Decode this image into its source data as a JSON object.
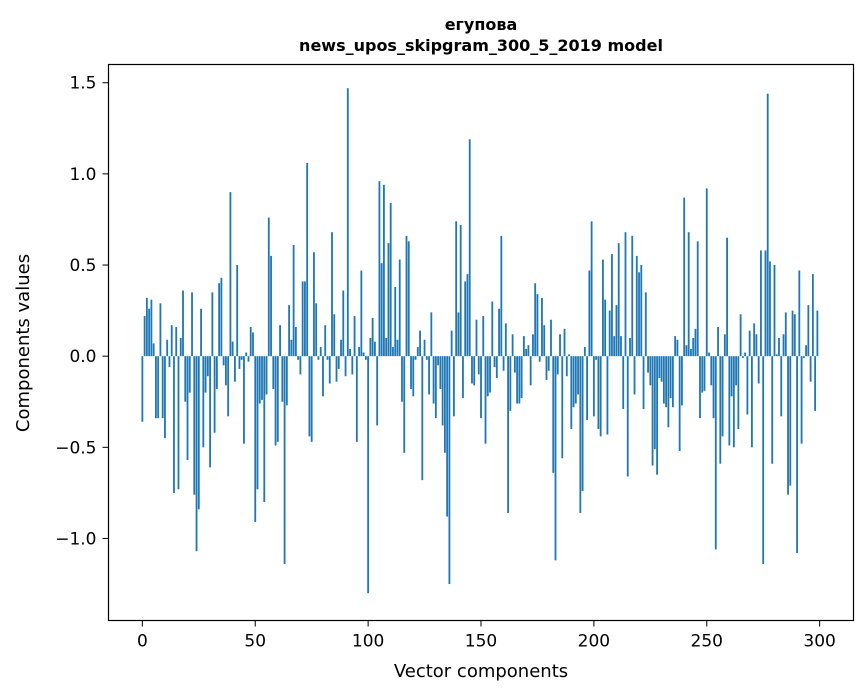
{
  "chart_data": {
    "type": "bar",
    "title_line1": "егупова",
    "title_line2": "news_upos_skipgram_300_5_2019 model",
    "xlabel": "Vector components",
    "ylabel": "Components values",
    "xlim": [
      -15,
      315
    ],
    "ylim": [
      -1.45,
      1.6
    ],
    "xticks": [
      0,
      50,
      100,
      150,
      200,
      250,
      300
    ],
    "xtick_labels": [
      "0",
      "50",
      "100",
      "150",
      "200",
      "250",
      "300"
    ],
    "yticks": [
      -1.0,
      -0.5,
      0.0,
      0.5,
      1.0,
      1.5
    ],
    "ytick_labels": [
      "−1.0",
      "−0.5",
      "0.0",
      "0.5",
      "1.0",
      "1.5"
    ],
    "bar_color": "#1f77b4",
    "grid": false,
    "legend": "none",
    "values": [
      -0.36,
      0.22,
      0.32,
      0.26,
      0.31,
      0.07,
      -0.34,
      -0.34,
      0.29,
      -0.34,
      -0.45,
      0.09,
      -0.06,
      0.17,
      -0.75,
      0.16,
      -0.73,
      0.1,
      0.36,
      -0.25,
      -0.57,
      -0.2,
      0.35,
      -0.76,
      -1.07,
      -0.84,
      0.26,
      -0.5,
      -0.2,
      -0.11,
      -0.61,
      0.35,
      -0.42,
      -0.18,
      0.4,
      0.43,
      -0.05,
      -0.16,
      -0.33,
      0.9,
      0.08,
      -0.14,
      0.5,
      -0.07,
      -0.02,
      -0.48,
      0.02,
      -0.03,
      0.16,
      0.13,
      -0.91,
      -0.73,
      -0.26,
      -0.24,
      -0.8,
      -0.21,
      0.76,
      0.55,
      -0.18,
      -0.49,
      -0.47,
      0.17,
      -0.25,
      -1.14,
      -0.27,
      0.28,
      0.09,
      0.61,
      0.16,
      -0.02,
      -0.1,
      0.41,
      0.41,
      1.06,
      -0.44,
      -0.47,
      0.57,
      0.29,
      -0.02,
      0.05,
      -0.22,
      0.17,
      -0.02,
      -0.15,
      0.68,
      0.23,
      -0.14,
      -0.07,
      0.09,
      0.36,
      -0.11,
      1.47,
      0.04,
      -0.1,
      0.22,
      -0.47,
      0.05,
      0.47,
      0.02,
      -0.02,
      -1.3,
      0.1,
      0.21,
      0.08,
      -0.38,
      0.96,
      0.51,
      0.94,
      0.1,
      0.62,
      0.84,
      0.05,
      0.38,
      0.09,
      0.53,
      -0.25,
      -0.53,
      0.66,
      0.63,
      -0.18,
      -0.22,
      -0.02,
      0.05,
      0.14,
      -0.68,
      0.09,
      -0.02,
      -0.21,
      0.24,
      -0.26,
      -0.34,
      -0.05,
      -0.18,
      -0.38,
      -0.53,
      -0.88,
      -1.25,
      0.14,
      -0.33,
      0.74,
      0.24,
      0.72,
      -0.23,
      0.41,
      0.45,
      1.19,
      -0.15,
      -0.16,
      0.2,
      -0.1,
      -0.34,
      0.22,
      -0.48,
      -0.22,
      -0.2,
      0.3,
      -0.06,
      -0.12,
      0.26,
      0.66,
      -0.08,
      0.18,
      -0.86,
      -0.3,
      0.12,
      -0.09,
      -0.26,
      -0.26,
      -0.23,
      0.11,
      0.04,
      0.06,
      -0.16,
      0.12,
      0.4,
      0.34,
      -0.03,
      0.32,
      0.17,
      -0.13,
      -0.08,
      0.2,
      -0.64,
      -1.12,
      -0.1,
      0.12,
      -0.56,
      0.15,
      -0.11,
      0.01,
      -0.4,
      -0.28,
      -0.26,
      -0.21,
      -0.86,
      -0.74,
      0.05,
      -0.35,
      0.47,
      0.74,
      -0.33,
      -0.02,
      -0.4,
      -0.44,
      0.53,
      0.31,
      -0.43,
      0.25,
      0.56,
      0.11,
      0.28,
      0.62,
      0.11,
      -0.29,
      0.68,
      -0.66,
      0.1,
      0.66,
      -0.21,
      0.55,
      0.46,
      0.5,
      -0.29,
      0.35,
      -0.09,
      -0.16,
      -0.6,
      -0.51,
      -0.65,
      -0.12,
      -0.14,
      -0.26,
      -0.28,
      -0.39,
      -0.23,
      -0.28,
      0.11,
      0.09,
      -0.52,
      -0.27,
      0.87,
      0.06,
      0.68,
      0.04,
      0.1,
      0.15,
      0.63,
      -0.34,
      -0.2,
      -0.19,
      0.92,
      0.02,
      -0.16,
      -0.34,
      -1.06,
      0.16,
      -0.59,
      -0.44,
      0.12,
      0.65,
      -0.49,
      -0.22,
      -0.5,
      -0.16,
      -0.4,
      0.23,
      -0.01,
      0.02,
      -0.32,
      0.14,
      -0.5,
      0.18,
      0.12,
      -0.15,
      0.58,
      -1.14,
      0.58,
      1.44,
      0.52,
      -0.59,
      0.5,
      0.01,
      0.1,
      -0.33,
      0.12,
      0.24,
      -0.76,
      -0.71,
      0.25,
      0.23,
      -1.08,
      0.47,
      -0.48,
      -0.01,
      0.06,
      0.28,
      -0.14,
      0.45,
      -0.3,
      0.25
    ]
  }
}
